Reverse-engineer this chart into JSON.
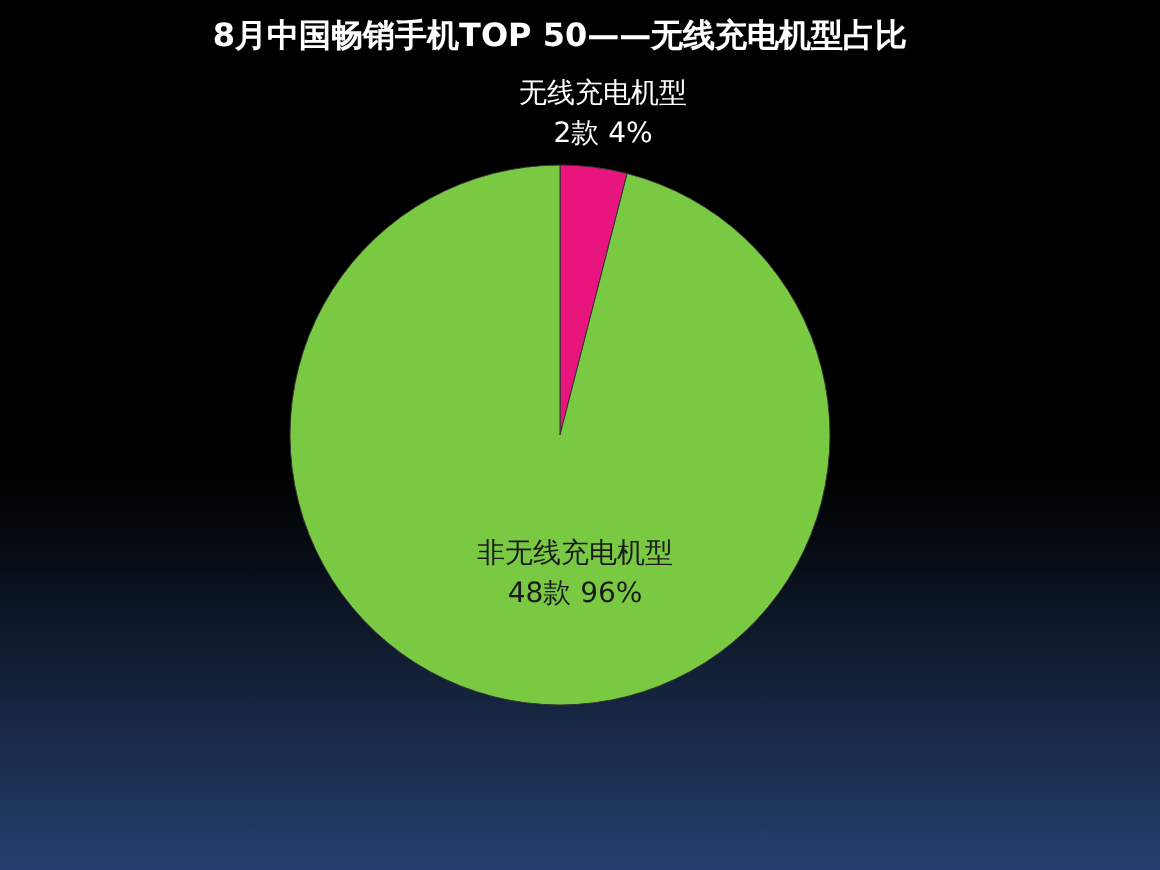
{
  "chart_data": {
    "type": "pie",
    "title": "8月中国畅销手机TOP 50——无线充电机型占比",
    "categories": [
      "无线充电机型",
      "非无线充电机型"
    ],
    "values": [
      2,
      48
    ],
    "value_labels": [
      "2款   4%",
      "48款   96%"
    ],
    "colors": [
      "#e8157f",
      "#7ac943"
    ],
    "legend": false
  }
}
